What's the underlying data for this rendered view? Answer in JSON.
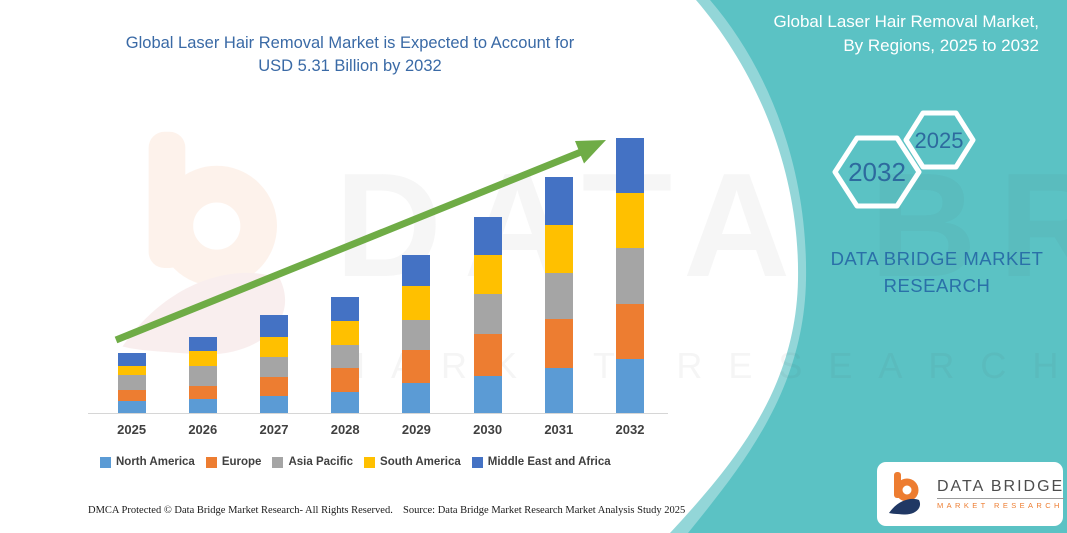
{
  "main_title": {
    "line1": "Global Laser Hair Removal Market is Expected to Account for",
    "line2": "USD 5.31 Billion by 2032"
  },
  "right_panel": {
    "title_line1": "Global Laser Hair Removal Market,",
    "title_line2": "By Regions, 2025 to 2032",
    "hexagons": [
      {
        "label": "2032"
      },
      {
        "label": "2025"
      }
    ],
    "brand_line1": "DATA BRIDGE MARKET",
    "brand_line2": "RESEARCH"
  },
  "watermark": {
    "line1": "DATA BRIDGE",
    "line2": "MARKET RESEARCH"
  },
  "logo": {
    "name": "DATA BRIDGE",
    "tagline": "MARKET RESEARCH"
  },
  "footer": {
    "dmca": "DMCA Protected © Data Bridge Market Research-  All Rights Reserved.",
    "source": "Source: Data Bridge Market Research  Market Analysis Study 2025"
  },
  "colors": {
    "teal_panel": "#5BC2C4",
    "teal_panel_light": "#93D6D8",
    "title_blue": "#3A6AA6",
    "hexagon_text_blue": "#2D6A9E",
    "brand_text_blue": "#2A70A8",
    "arrow_green": "#6FAC46",
    "logo_orange": "#ED7D31",
    "logo_navy": "#203864"
  },
  "chart_data": {
    "type": "bar",
    "stacked": true,
    "title": "Global Laser Hair Removal Market is Expected to Account for USD 5.31 Billion by 2032",
    "xlabel": "",
    "ylabel": "",
    "units": "USD Billion (estimated from bar heights; no value axis shown)",
    "ylim": [
      0,
      5.6
    ],
    "grid": false,
    "legend_position": "bottom",
    "categories": [
      "2025",
      "2026",
      "2027",
      "2028",
      "2029",
      "2030",
      "2031",
      "2032"
    ],
    "series": [
      {
        "name": "North America",
        "color": "#5B9BD5",
        "values": [
          0.25,
          0.28,
          0.34,
          0.42,
          0.6,
          0.74,
          0.89,
          1.05
        ]
      },
      {
        "name": "Europe",
        "color": "#ED7D31",
        "values": [
          0.21,
          0.26,
          0.37,
          0.46,
          0.64,
          0.79,
          0.93,
          1.07
        ]
      },
      {
        "name": "Asia Pacific",
        "color": "#A5A5A5",
        "values": [
          0.29,
          0.39,
          0.39,
          0.45,
          0.56,
          0.77,
          0.9,
          1.08
        ]
      },
      {
        "name": "South America",
        "color": "#FFC000",
        "values": [
          0.18,
          0.29,
          0.39,
          0.45,
          0.67,
          0.75,
          0.91,
          1.06
        ]
      },
      {
        "name": "Middle East and Africa",
        "color": "#4472C4",
        "values": [
          0.24,
          0.27,
          0.42,
          0.48,
          0.58,
          0.74,
          0.93,
          1.05
        ]
      }
    ],
    "totals": [
      1.17,
      1.49,
      1.91,
      2.26,
      3.05,
      3.79,
      4.56,
      5.31
    ],
    "annotations": [
      "green upward trend arrow from first bar to last bar"
    ]
  }
}
